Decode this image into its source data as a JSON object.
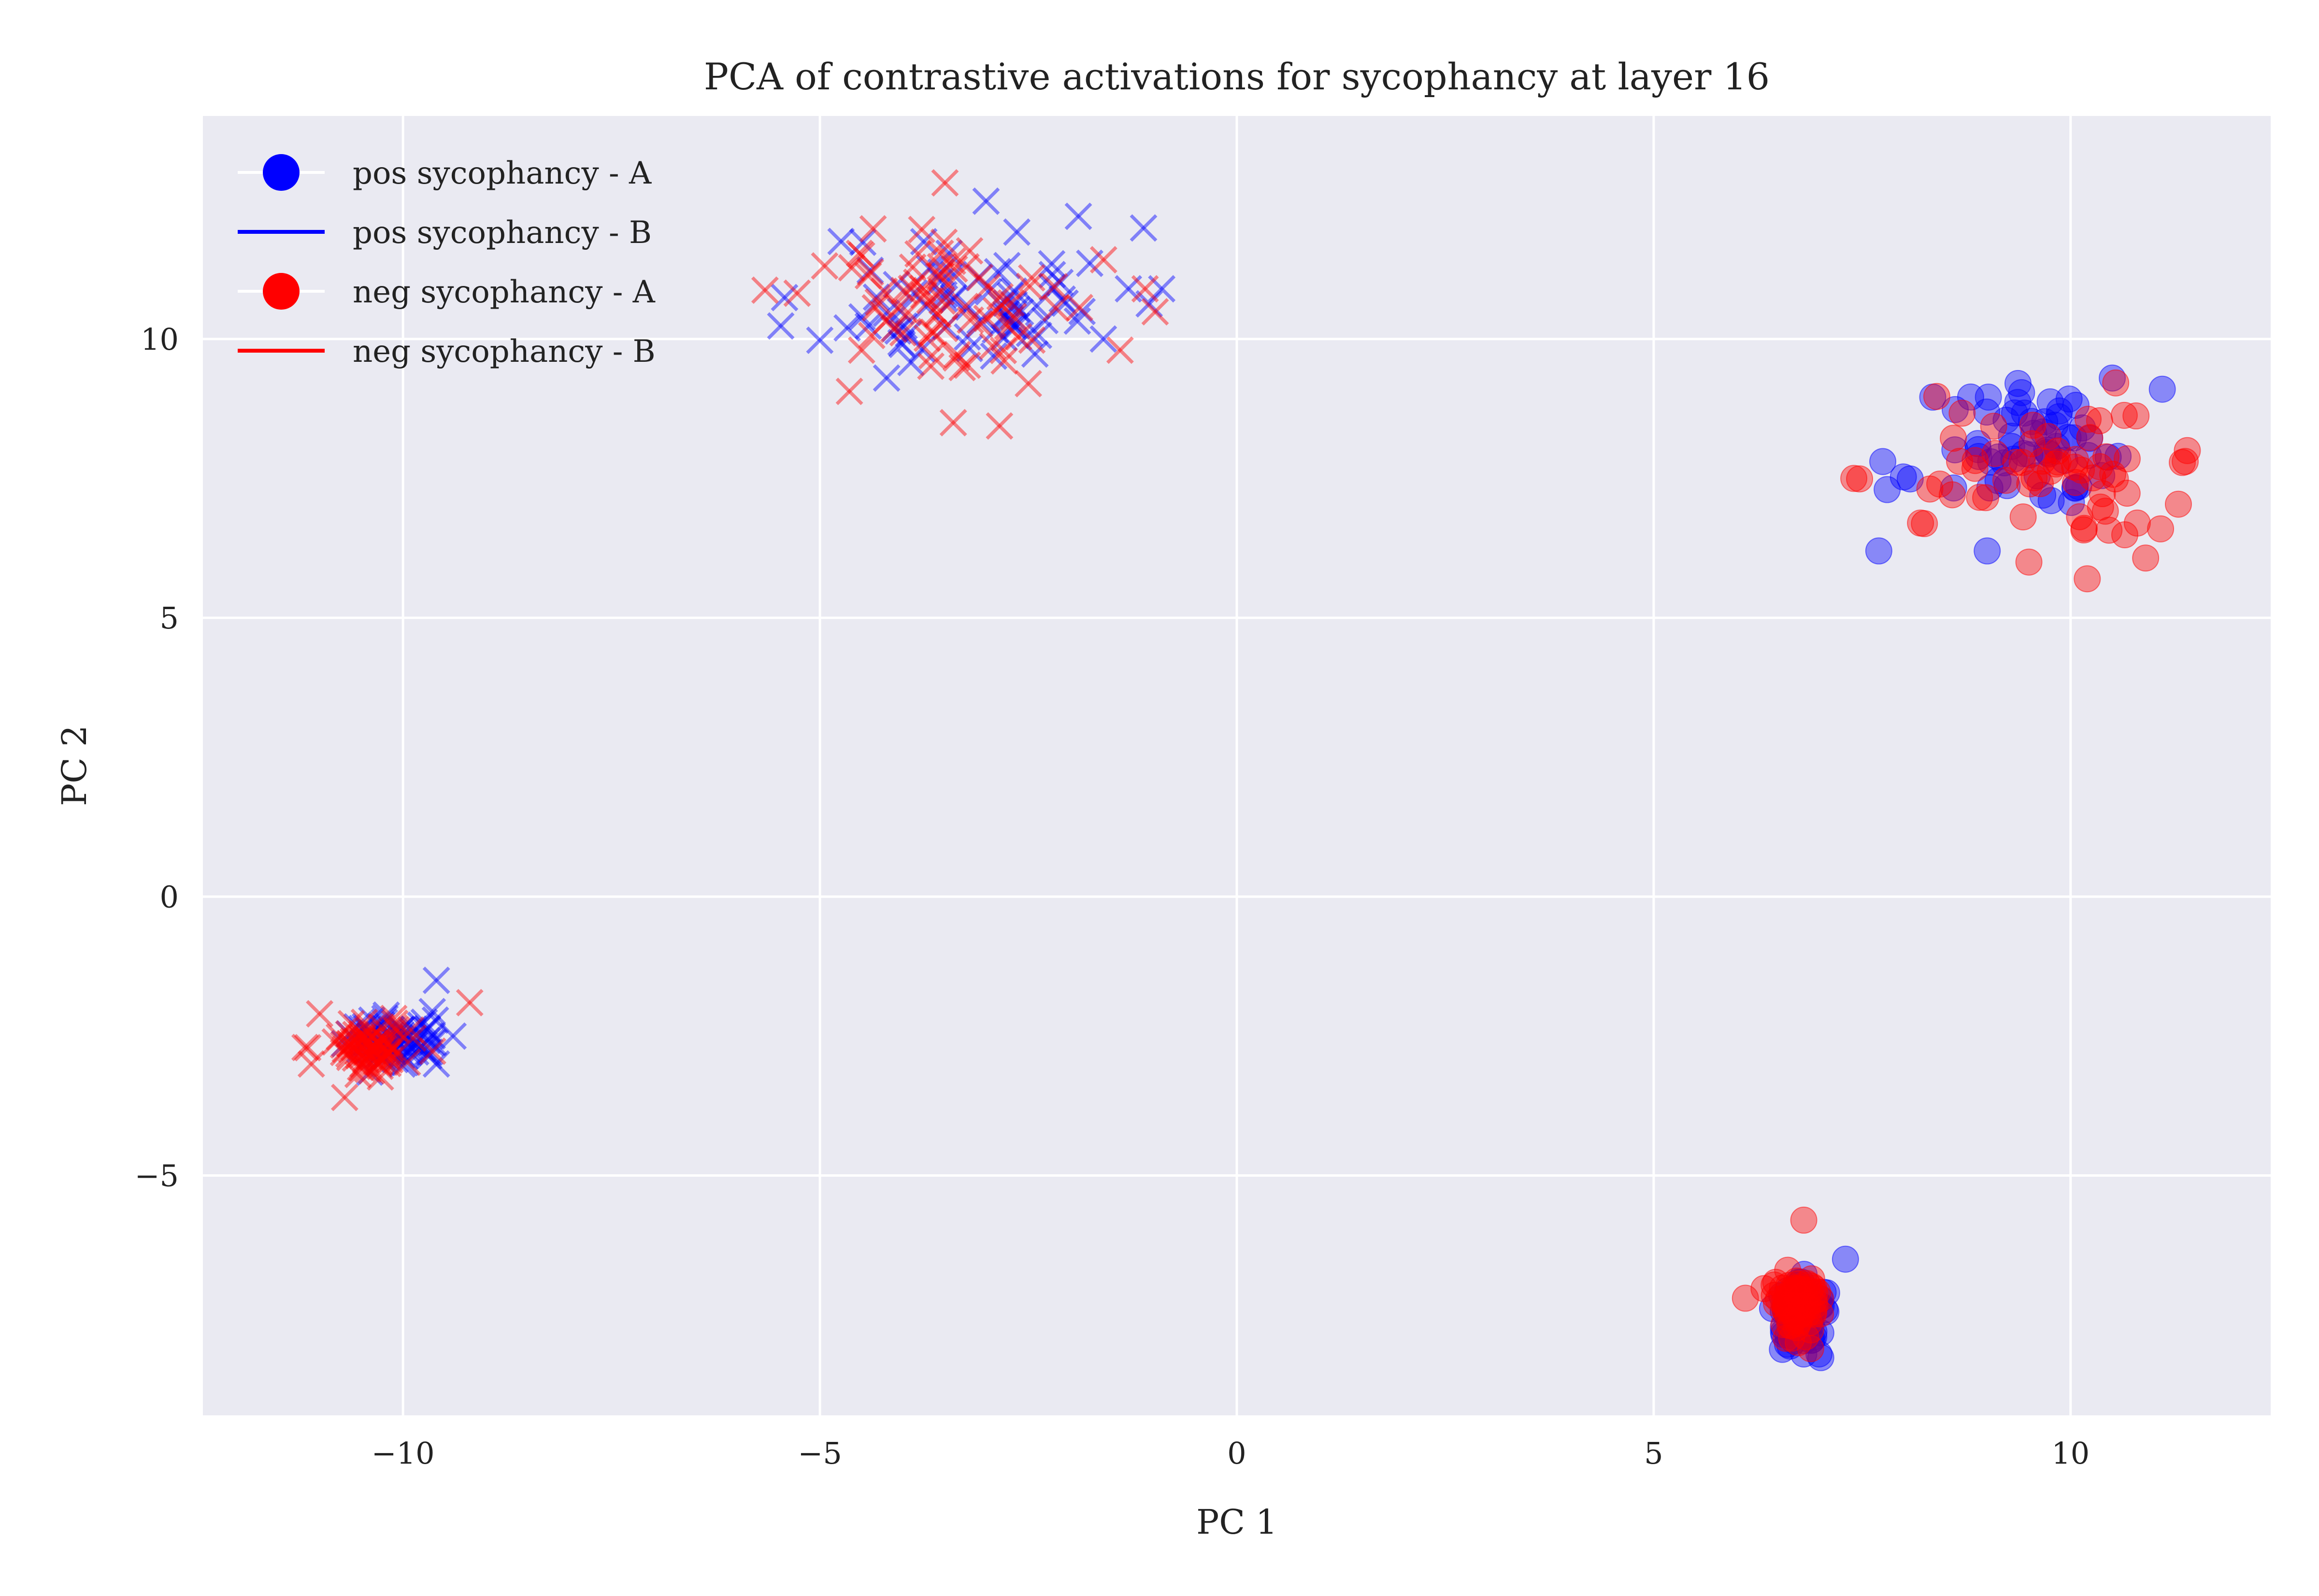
{
  "chart_data": {
    "type": "scatter",
    "title": "PCA of contrastive activations for sycophancy at layer 16",
    "xlabel": "PC 1",
    "ylabel": "PC 2",
    "xlim": [
      -12.4,
      12.4
    ],
    "ylim": [
      -9.3,
      14.0
    ],
    "xticks": [
      -10,
      -5,
      0,
      5,
      10
    ],
    "yticks": [
      -5,
      0,
      5,
      10
    ],
    "xtick_labels": [
      "−10",
      "−5",
      "0",
      "5",
      "10"
    ],
    "ytick_labels": [
      "−5",
      "0",
      "5",
      "10"
    ],
    "grid": true,
    "background": "#eaeaf2",
    "legend_placement": "upper-left",
    "legend": [
      {
        "label": "pos sycophancy - A",
        "marker": "circle",
        "color": "#0000ff"
      },
      {
        "label": "pos sycophancy - B",
        "marker": "line",
        "color": "#0000ff"
      },
      {
        "label": "neg sycophancy - A",
        "marker": "circle",
        "color": "#ff0000"
      },
      {
        "label": "neg sycophancy - B",
        "marker": "line",
        "color": "#ff0000"
      }
    ],
    "clusters": [
      {
        "series": "pos sycophancy - B",
        "marker": "x",
        "color": "#0000ff",
        "center": [
          -3.2,
          10.7
        ],
        "spread": [
          0.9,
          0.65
        ],
        "count": 75,
        "seed": 11,
        "extra": [
          [
            -1.9,
            12.2
          ],
          [
            -0.9,
            10.9
          ],
          [
            -1.3,
            10.9
          ],
          [
            -1.6,
            10.0
          ],
          [
            -4.2,
            9.3
          ]
        ]
      },
      {
        "series": "neg sycophancy - B",
        "marker": "x",
        "color": "#ff0000",
        "center": [
          -3.4,
          10.6
        ],
        "spread": [
          0.85,
          0.7
        ],
        "count": 75,
        "seed": 12,
        "extra": [
          [
            -3.5,
            12.8
          ],
          [
            -4.5,
            11.5
          ],
          [
            -1.1,
            10.9
          ],
          [
            -3.4,
            8.5
          ],
          [
            -2.5,
            9.2
          ],
          [
            -1.4,
            9.8
          ],
          [
            -4.5,
            9.8
          ]
        ]
      },
      {
        "series": "pos sycophancy - A",
        "marker": "circle",
        "color": "#0000ff",
        "center": [
          9.6,
          8.0
        ],
        "spread": [
          0.6,
          0.55
        ],
        "count": 60,
        "seed": 21,
        "extra": [
          [
            11.1,
            9.1
          ],
          [
            10.5,
            9.3
          ],
          [
            7.7,
            6.2
          ],
          [
            7.8,
            7.3
          ],
          [
            9.0,
            6.2
          ]
        ]
      },
      {
        "series": "neg sycophancy - A",
        "marker": "circle",
        "color": "#ff0000",
        "center": [
          9.7,
          7.7
        ],
        "spread": [
          0.75,
          0.6
        ],
        "count": 60,
        "seed": 22,
        "extra": [
          [
            7.4,
            7.5
          ],
          [
            11.4,
            8.0
          ],
          [
            10.2,
            5.7
          ],
          [
            9.5,
            6.0
          ],
          [
            10.8,
            6.7
          ],
          [
            8.2,
            6.7
          ]
        ]
      },
      {
        "series": "pos sycophancy - B",
        "marker": "x",
        "color": "#0000ff",
        "center": [
          -10.1,
          -2.6
        ],
        "spread": [
          0.28,
          0.22
        ],
        "count": 80,
        "seed": 31,
        "extra": [
          [
            -9.6,
            -1.5
          ],
          [
            -9.4,
            -2.5
          ],
          [
            -9.6,
            -3.0
          ]
        ]
      },
      {
        "series": "neg sycophancy - B",
        "marker": "x",
        "color": "#ff0000",
        "center": [
          -10.4,
          -2.7
        ],
        "spread": [
          0.28,
          0.22
        ],
        "count": 80,
        "seed": 32,
        "extra": [
          [
            -9.2,
            -1.9
          ],
          [
            -11.0,
            -2.1
          ],
          [
            -11.1,
            -3.0
          ],
          [
            -10.7,
            -3.6
          ]
        ]
      },
      {
        "series": "pos sycophancy - A",
        "marker": "circle",
        "color": "#0000ff",
        "center": [
          6.8,
          -7.5
        ],
        "spread": [
          0.16,
          0.3
        ],
        "count": 80,
        "seed": 41,
        "extra": [
          [
            7.3,
            -6.5
          ],
          [
            6.8,
            -8.2
          ]
        ]
      },
      {
        "series": "neg sycophancy - A",
        "marker": "circle",
        "color": "#ff0000",
        "center": [
          6.7,
          -7.3
        ],
        "spread": [
          0.16,
          0.3
        ],
        "count": 80,
        "seed": 42,
        "extra": [
          [
            6.8,
            -5.8
          ],
          [
            6.1,
            -7.2
          ]
        ]
      }
    ]
  }
}
